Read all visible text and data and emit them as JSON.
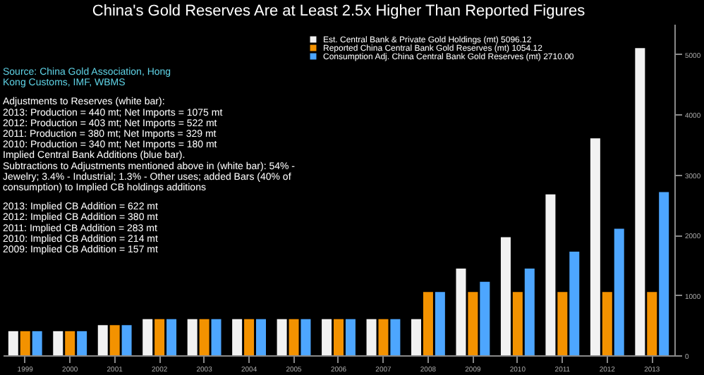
{
  "chart_data": {
    "type": "bar",
    "title": "China's Gold Reserves Are at Least 2.5x Higher Than Reported Figures",
    "categories": [
      "1999",
      "2000",
      "2001",
      "2002",
      "2003",
      "2004",
      "2005",
      "2006",
      "2007",
      "2008",
      "2009",
      "2010",
      "2011",
      "2012",
      "2013"
    ],
    "series": [
      {
        "name": "Est. Central Bank & Private Gold Holdings (mt)   5096.12",
        "color": "#f2f2f2",
        "values": [
          400,
          400,
          500,
          600,
          600,
          600,
          600,
          600,
          600,
          600,
          1440,
          1960,
          2670,
          3600,
          5100
        ]
      },
      {
        "name": "Reported China Central Bank Gold Reserves (mt)   1054.12",
        "color": "#f39200",
        "values": [
          400,
          400,
          500,
          600,
          600,
          600,
          600,
          600,
          600,
          1050,
          1050,
          1050,
          1050,
          1050,
          1050
        ]
      },
      {
        "name": "Consumption Adj. China Central Bank Gold Reserves (mt) 2710.00",
        "color": "#4da6ff",
        "values": [
          400,
          400,
          500,
          600,
          600,
          600,
          600,
          600,
          600,
          1050,
          1220,
          1440,
          1720,
          2100,
          2710
        ]
      }
    ],
    "ylim": [
      0,
      5500
    ],
    "yticks": [
      0,
      1000,
      2000,
      3000,
      4000,
      5000
    ],
    "grid": false,
    "legend": "top right",
    "annotations": [
      "Source: China Gold Association, Hong",
      "Kong Customs, IMF, WBMS",
      "Adjustments to Reserves (white bar):",
      "2013: Production = 440 mt; Net Imports = 1075 mt",
      "2012: Production = 403 mt; Net Imports =  522 mt",
      "2011: Production = 380 mt; Net Imports =  329 mt",
      "2010: Production = 340 mt; Net Imports =  180 mt",
      "Implied Central Bank Additions (blue bar).",
      "Subtractions to Adjustments mentioned above in (white bar): 54% -",
      "Jewelry; 3.4% - Industrial; 1.3% - Other uses; added Bars (40% of",
      "consumption) to Implied CB holdings additions",
      "2013: Implied CB Addition = 622 mt",
      "2012: Implied CB Addition = 380 mt",
      "2011: Implied CB Addition = 283 mt",
      "2010: Implied CB Addition = 214 mt",
      "2009: Implied CB Addition = 157 mt"
    ]
  }
}
